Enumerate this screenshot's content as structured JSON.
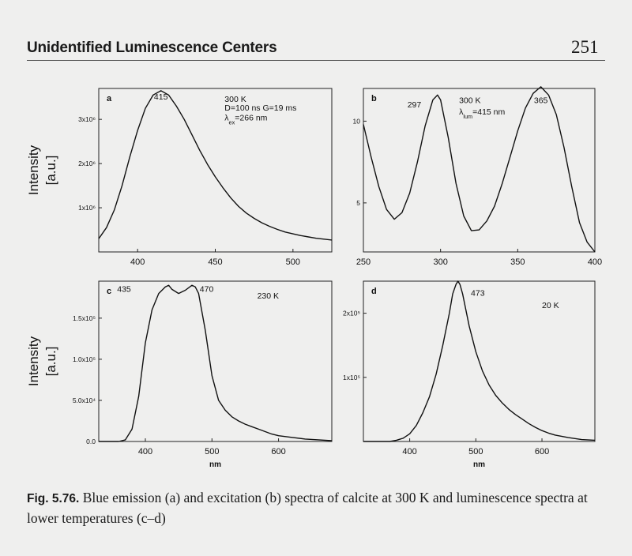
{
  "header": {
    "running_title": "Unidentified Luminescence Centers",
    "page_number": "251"
  },
  "caption": {
    "label": "Fig. 5.76.",
    "text": "Blue emission (a) and excitation (b) spectra of calcite at 300 K and luminescence spectra at lower temperatures (c–d)"
  },
  "chart_data": [
    {
      "id": "a",
      "type": "line",
      "panel_label": "a",
      "ylabel_lines": [
        "Intensity",
        "[a.u.]"
      ],
      "xlabel": "",
      "xlim": [
        375,
        525
      ],
      "ylim": [
        0,
        3.7
      ],
      "xticks": [
        {
          "v": 400,
          "t": "400"
        },
        {
          "v": 450,
          "t": "450"
        },
        {
          "v": 500,
          "t": "500"
        }
      ],
      "yticks": [
        {
          "v": 1,
          "t": "1x10⁶"
        },
        {
          "v": 2,
          "t": "2x10⁶"
        },
        {
          "v": 3,
          "t": "3x10⁶"
        }
      ],
      "annotations": [
        {
          "text": "415",
          "x": 415,
          "y": 3.45,
          "anchor": "middle"
        },
        {
          "text": "300 K",
          "x": 456,
          "y": 3.4,
          "anchor": "start"
        },
        {
          "text": "D=100 ns G=19 ms",
          "x": 456,
          "y": 3.2,
          "anchor": "start"
        },
        {
          "text": "λex=266 nm",
          "x": 456,
          "y": 2.98,
          "anchor": "start"
        }
      ],
      "series": [
        {
          "x": [
            375,
            380,
            385,
            390,
            395,
            400,
            405,
            410,
            415,
            420,
            425,
            430,
            435,
            440,
            445,
            450,
            455,
            460,
            465,
            470,
            475,
            480,
            485,
            490,
            495,
            500,
            505,
            510,
            515,
            520,
            525
          ],
          "y": [
            0.3,
            0.55,
            0.95,
            1.5,
            2.15,
            2.75,
            3.25,
            3.55,
            3.65,
            3.55,
            3.3,
            3.0,
            2.65,
            2.3,
            1.98,
            1.7,
            1.45,
            1.22,
            1.03,
            0.88,
            0.76,
            0.66,
            0.58,
            0.51,
            0.45,
            0.41,
            0.37,
            0.34,
            0.31,
            0.29,
            0.27
          ]
        }
      ]
    },
    {
      "id": "b",
      "type": "line",
      "panel_label": "b",
      "xlabel": "",
      "ylabel_lines": [],
      "xlim": [
        250,
        400
      ],
      "ylim": [
        2,
        12
      ],
      "xticks": [
        {
          "v": 250,
          "t": "250"
        },
        {
          "v": 300,
          "t": "300"
        },
        {
          "v": 350,
          "t": "350"
        },
        {
          "v": 400,
          "t": "400"
        }
      ],
      "yticks": [
        {
          "v": 5,
          "t": "5"
        },
        {
          "v": 10,
          "t": "10"
        }
      ],
      "annotations": [
        {
          "text": "297",
          "x": 283,
          "y": 10.85,
          "anchor": "middle"
        },
        {
          "text": "300 K",
          "x": 312,
          "y": 11.1,
          "anchor": "start"
        },
        {
          "text": "λlum=415 nm",
          "x": 312,
          "y": 10.4,
          "anchor": "start"
        },
        {
          "text": "365",
          "x": 365,
          "y": 11.1,
          "anchor": "middle"
        }
      ],
      "series": [
        {
          "x": [
            250,
            255,
            260,
            265,
            270,
            275,
            280,
            285,
            290,
            295,
            298,
            300,
            305,
            310,
            315,
            320,
            325,
            330,
            335,
            340,
            345,
            350,
            355,
            360,
            365,
            370,
            375,
            380,
            385,
            390,
            395,
            400
          ],
          "y": [
            9.8,
            7.8,
            6.0,
            4.6,
            4.0,
            4.4,
            5.6,
            7.5,
            9.7,
            11.3,
            11.6,
            11.3,
            9.0,
            6.2,
            4.2,
            3.3,
            3.35,
            3.9,
            4.8,
            6.2,
            7.8,
            9.4,
            10.8,
            11.7,
            12.1,
            11.6,
            10.4,
            8.4,
            6.0,
            3.8,
            2.6,
            2.0
          ]
        }
      ]
    },
    {
      "id": "c",
      "type": "line",
      "panel_label": "c",
      "ylabel_lines": [
        "Intensity",
        "[a.u.]"
      ],
      "xlabel": "nm",
      "xlim": [
        330,
        680
      ],
      "ylim": [
        0,
        1.95
      ],
      "xticks": [
        {
          "v": 400,
          "t": "400"
        },
        {
          "v": 500,
          "t": "500"
        },
        {
          "v": 600,
          "t": "600"
        }
      ],
      "yticks": [
        {
          "v": 0,
          "t": "0.0"
        },
        {
          "v": 0.5,
          "t": "5.0x10⁴"
        },
        {
          "v": 1,
          "t": "1.0x10⁵"
        },
        {
          "v": 1.5,
          "t": "1.5x10⁵"
        }
      ],
      "annotations": [
        {
          "text": "435",
          "x": 368,
          "y": 1.82,
          "anchor": "middle"
        },
        {
          "text": "470",
          "x": 492,
          "y": 1.82,
          "anchor": "middle"
        },
        {
          "text": "230 K",
          "x": 568,
          "y": 1.74,
          "anchor": "start"
        }
      ],
      "series": [
        {
          "x": [
            330,
            360,
            370,
            380,
            390,
            400,
            410,
            420,
            430,
            435,
            440,
            450,
            455,
            460,
            470,
            475,
            480,
            490,
            500,
            510,
            520,
            530,
            540,
            550,
            560,
            570,
            580,
            590,
            600,
            620,
            640,
            660,
            680
          ],
          "y": [
            0.0,
            0.0,
            0.02,
            0.15,
            0.55,
            1.2,
            1.6,
            1.8,
            1.88,
            1.9,
            1.85,
            1.8,
            1.82,
            1.84,
            1.9,
            1.88,
            1.8,
            1.35,
            0.8,
            0.5,
            0.38,
            0.3,
            0.25,
            0.21,
            0.18,
            0.15,
            0.12,
            0.09,
            0.07,
            0.05,
            0.03,
            0.02,
            0.01
          ]
        }
      ]
    },
    {
      "id": "d",
      "type": "line",
      "panel_label": "d",
      "xlabel": "nm",
      "ylabel_lines": [],
      "xlim": [
        330,
        680
      ],
      "ylim": [
        0,
        2.5
      ],
      "xticks": [
        {
          "v": 400,
          "t": "400"
        },
        {
          "v": 500,
          "t": "500"
        },
        {
          "v": 600,
          "t": "600"
        }
      ],
      "yticks": [
        {
          "v": 1,
          "t": "1x10⁵"
        },
        {
          "v": 2,
          "t": "2x10⁵"
        }
      ],
      "annotations": [
        {
          "text": "473",
          "x": 503,
          "y": 2.27,
          "anchor": "middle"
        },
        {
          "text": "20 K",
          "x": 600,
          "y": 2.08,
          "anchor": "start"
        }
      ],
      "series": [
        {
          "x": [
            330,
            370,
            380,
            390,
            400,
            410,
            420,
            430,
            440,
            450,
            460,
            465,
            470,
            473,
            476,
            480,
            490,
            500,
            510,
            520,
            530,
            540,
            550,
            560,
            570,
            580,
            590,
            600,
            610,
            620,
            640,
            660,
            680
          ],
          "y": [
            0.0,
            0.0,
            0.02,
            0.05,
            0.12,
            0.25,
            0.45,
            0.7,
            1.05,
            1.5,
            2.0,
            2.3,
            2.45,
            2.5,
            2.45,
            2.3,
            1.8,
            1.4,
            1.1,
            0.88,
            0.72,
            0.6,
            0.5,
            0.42,
            0.35,
            0.28,
            0.22,
            0.17,
            0.13,
            0.1,
            0.06,
            0.03,
            0.02
          ]
        }
      ]
    }
  ]
}
